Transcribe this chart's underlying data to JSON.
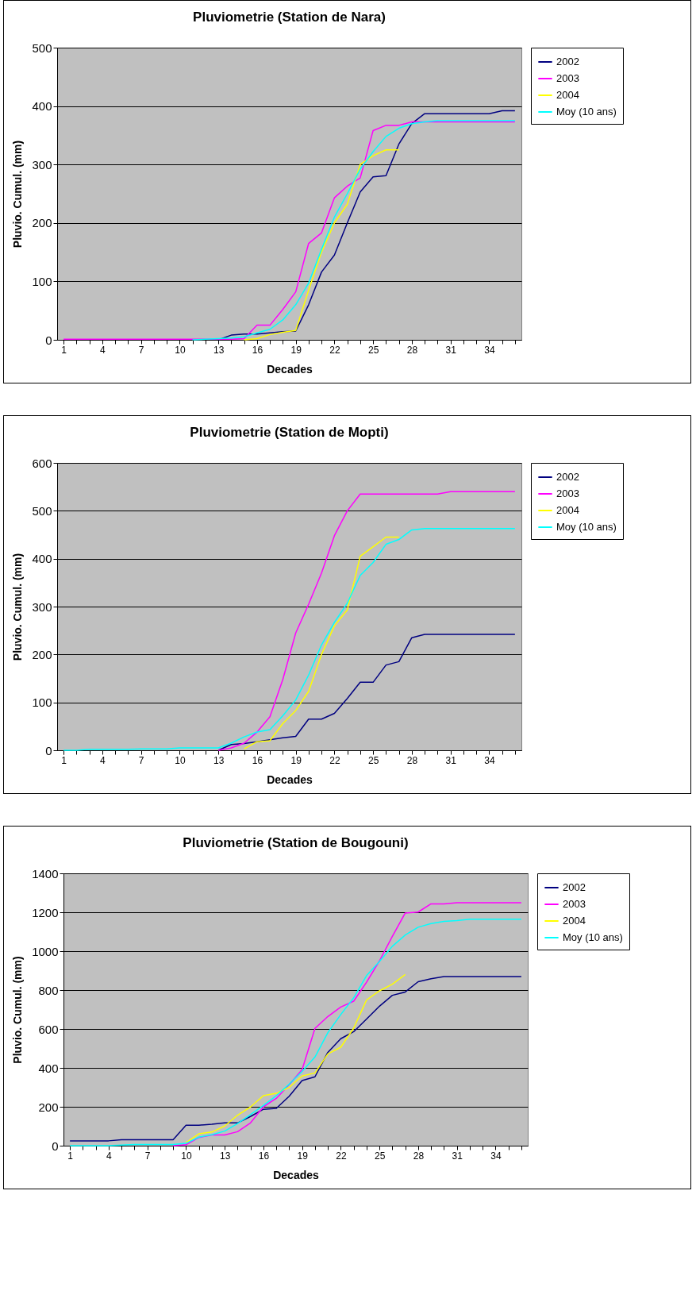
{
  "chart_data": [
    {
      "type": "line",
      "title": "Pluviometrie (Station de Nara)",
      "xlabel": "Decades",
      "ylabel": "Pluvio. Cumul. (mm)",
      "categories": [
        "1",
        null,
        null,
        "4",
        null,
        null,
        "7",
        null,
        null,
        "10",
        null,
        null,
        "13",
        null,
        null,
        "16",
        null,
        null,
        "19",
        null,
        null,
        "22",
        null,
        null,
        "25",
        null,
        null,
        "28",
        null,
        null,
        "31",
        null,
        null,
        "34",
        null,
        null
      ],
      "ylim": [
        0,
        500
      ],
      "yticks": [
        0,
        100,
        200,
        300,
        400,
        500
      ],
      "grid": "y",
      "legend": "right",
      "line_style": "solid",
      "marker": "none",
      "series": [
        {
          "name": "2002",
          "color": "#000080",
          "values": [
            null,
            null,
            null,
            null,
            null,
            null,
            null,
            null,
            null,
            null,
            null,
            null,
            0,
            8,
            10,
            10,
            12,
            14,
            15,
            60,
            116,
            145,
            200,
            253,
            279,
            281,
            335,
            370,
            387,
            387,
            387,
            387,
            387,
            387,
            392,
            392
          ]
        },
        {
          "name": "2003",
          "color": "#ff00ff",
          "values": [
            1,
            1,
            1,
            1,
            1,
            1,
            1,
            1,
            1,
            1,
            1,
            1,
            1,
            1,
            2,
            25,
            25,
            52,
            82,
            165,
            183,
            243,
            263,
            277,
            358,
            367,
            367,
            373,
            373,
            373,
            373,
            373,
            373,
            373,
            373,
            373
          ]
        },
        {
          "name": "2004",
          "color": "#ffff00",
          "values": [
            null,
            null,
            null,
            null,
            null,
            null,
            null,
            null,
            null,
            null,
            null,
            null,
            null,
            null,
            0,
            2,
            9,
            13,
            16,
            85,
            150,
            200,
            232,
            300,
            315,
            325,
            325,
            null,
            null,
            null,
            null,
            null,
            null,
            null,
            null,
            null
          ]
        },
        {
          "name": "Moy (10 ans)",
          "color": "#00ffff",
          "values": [
            null,
            null,
            null,
            null,
            null,
            null,
            null,
            null,
            null,
            null,
            0,
            1,
            2,
            3,
            5,
            12,
            18,
            34,
            60,
            97,
            155,
            210,
            250,
            292,
            322,
            348,
            362,
            370,
            373,
            375,
            375,
            375,
            375,
            375,
            375,
            375
          ]
        }
      ]
    },
    {
      "type": "line",
      "title": "Pluviometrie (Station de Mopti)",
      "xlabel": "Decades",
      "ylabel": "Pluvio. Cumul. (mm)",
      "categories": [
        "1",
        null,
        null,
        "4",
        null,
        null,
        "7",
        null,
        null,
        "10",
        null,
        null,
        "13",
        null,
        null,
        "16",
        null,
        null,
        "19",
        null,
        null,
        "22",
        null,
        null,
        "25",
        null,
        null,
        "28",
        null,
        null,
        "31",
        null,
        null,
        "34",
        null,
        null
      ],
      "ylim": [
        0,
        600
      ],
      "yticks": [
        0,
        100,
        200,
        300,
        400,
        500,
        600
      ],
      "grid": "y",
      "legend": "right",
      "line_style": "solid",
      "marker": "none",
      "series": [
        {
          "name": "2002",
          "color": "#000080",
          "values": [
            null,
            null,
            null,
            null,
            null,
            null,
            null,
            null,
            null,
            null,
            null,
            null,
            0,
            12,
            14,
            18,
            22,
            26,
            29,
            65,
            65,
            77,
            108,
            142,
            142,
            178,
            185,
            235,
            242,
            242,
            242,
            242,
            242,
            242,
            242,
            242
          ]
        },
        {
          "name": "2003",
          "color": "#ff00ff",
          "values": [
            null,
            null,
            null,
            null,
            null,
            null,
            null,
            null,
            null,
            null,
            null,
            null,
            0,
            5,
            15,
            38,
            70,
            148,
            245,
            305,
            370,
            448,
            500,
            535,
            535,
            535,
            535,
            535,
            535,
            535,
            540,
            540,
            540,
            540,
            540,
            540
          ]
        },
        {
          "name": "2004",
          "color": "#ffff00",
          "values": [
            null,
            null,
            null,
            null,
            null,
            null,
            null,
            null,
            null,
            null,
            null,
            null,
            null,
            null,
            3,
            18,
            20,
            56,
            83,
            123,
            200,
            260,
            293,
            405,
            425,
            445,
            445,
            null,
            null,
            null,
            null,
            null,
            null,
            null,
            null,
            null
          ]
        },
        {
          "name": "Moy (10 ans)",
          "color": "#00ffff",
          "values": [
            0,
            0,
            2,
            2,
            2,
            2,
            3,
            3,
            3,
            5,
            5,
            5,
            5,
            15,
            28,
            38,
            43,
            72,
            105,
            157,
            220,
            267,
            307,
            365,
            392,
            430,
            440,
            460,
            463,
            463,
            463,
            463,
            463,
            463,
            463,
            463
          ]
        }
      ]
    },
    {
      "type": "line",
      "title": "Pluviometrie (Station de Bougouni)",
      "xlabel": "Decades",
      "ylabel": "Pluvio. Cumul. (mm)",
      "categories": [
        "1",
        null,
        null,
        "4",
        null,
        null,
        "7",
        null,
        null,
        "10",
        null,
        null,
        "13",
        null,
        null,
        "16",
        null,
        null,
        "19",
        null,
        null,
        "22",
        null,
        null,
        "25",
        null,
        null,
        "28",
        null,
        null,
        "31",
        null,
        null,
        "34",
        null,
        null
      ],
      "ylim": [
        0,
        1400
      ],
      "yticks": [
        0,
        200,
        400,
        600,
        800,
        1000,
        1200,
        1400
      ],
      "grid": "y",
      "legend": "right",
      "line_style": "solid",
      "marker": "none",
      "series": [
        {
          "name": "2002",
          "color": "#000080",
          "values": [
            25,
            25,
            25,
            25,
            31,
            31,
            31,
            31,
            31,
            105,
            105,
            110,
            117,
            117,
            150,
            187,
            192,
            254,
            335,
            354,
            480,
            550,
            586,
            651,
            717,
            773,
            790,
            843,
            858,
            869,
            869,
            869,
            869,
            869,
            869,
            869
          ]
        },
        {
          "name": "2003",
          "color": "#ff00ff",
          "values": [
            null,
            null,
            null,
            null,
            null,
            null,
            null,
            null,
            0,
            5,
            42,
            55,
            55,
            72,
            117,
            200,
            243,
            313,
            391,
            603,
            664,
            713,
            743,
            840,
            950,
            1076,
            1196,
            1201,
            1243,
            1243,
            1249,
            1249,
            1249,
            1249,
            1249,
            1249
          ]
        },
        {
          "name": "2004",
          "color": "#ffff00",
          "values": [
            null,
            null,
            null,
            null,
            null,
            null,
            null,
            null,
            null,
            16,
            61,
            70,
            101,
            157,
            199,
            257,
            269,
            300,
            358,
            374,
            472,
            506,
            604,
            749,
            796,
            830,
            880,
            null,
            null,
            null,
            null,
            null,
            null,
            null,
            null,
            null
          ]
        },
        {
          "name": "Moy (10 ans)",
          "color": "#00ffff",
          "values": [
            0,
            0,
            0,
            0,
            3,
            6,
            6,
            6,
            6,
            12,
            44,
            56,
            75,
            114,
            160,
            207,
            257,
            316,
            382,
            456,
            581,
            674,
            760,
            874,
            947,
            1025,
            1083,
            1123,
            1142,
            1153,
            1157,
            1164,
            1164,
            1164,
            1164,
            1164
          ]
        }
      ]
    }
  ]
}
